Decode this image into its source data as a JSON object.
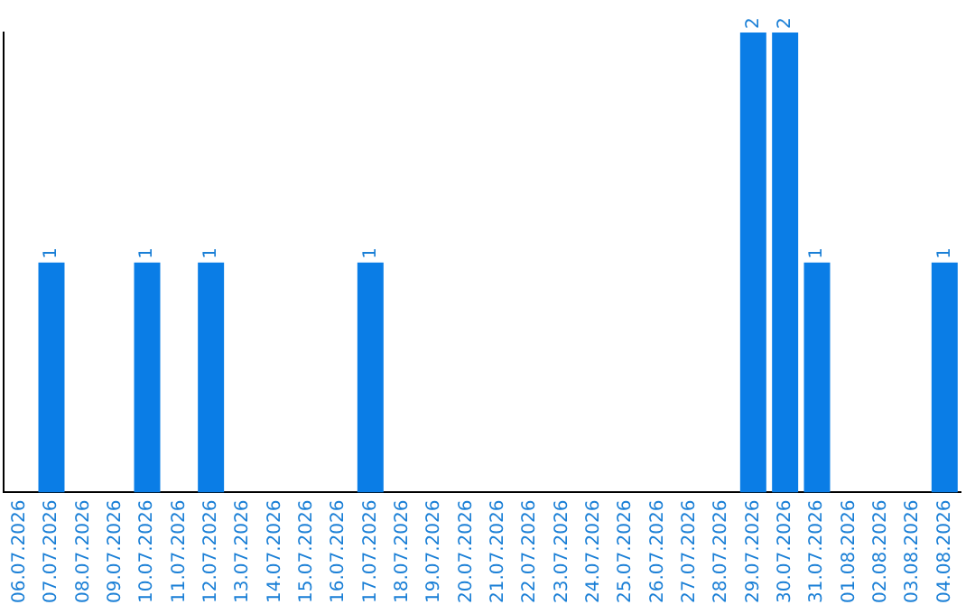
{
  "chart_data": {
    "type": "bar",
    "categories": [
      "06.07.2026",
      "07.07.2026",
      "08.07.2026",
      "09.07.2026",
      "10.07.2026",
      "11.07.2026",
      "12.07.2026",
      "13.07.2026",
      "14.07.2026",
      "15.07.2026",
      "16.07.2026",
      "17.07.2026",
      "18.07.2026",
      "19.07.2026",
      "20.07.2026",
      "21.07.2026",
      "22.07.2026",
      "23.07.2026",
      "24.07.2026",
      "25.07.2026",
      "26.07.2026",
      "27.07.2026",
      "28.07.2026",
      "29.07.2026",
      "30.07.2026",
      "31.07.2026",
      "01.08.2026",
      "02.08.2026",
      "03.08.2026",
      "04.08.2026"
    ],
    "values": [
      0,
      1,
      0,
      0,
      1,
      0,
      1,
      0,
      0,
      0,
      0,
      1,
      0,
      0,
      0,
      0,
      0,
      0,
      0,
      0,
      0,
      0,
      0,
      2,
      2,
      1,
      0,
      0,
      0,
      1
    ],
    "color": "#0a7de6",
    "value_labels": [
      null,
      "1",
      null,
      null,
      "1",
      null,
      "1",
      null,
      null,
      null,
      null,
      "1",
      null,
      null,
      null,
      null,
      null,
      null,
      null,
      null,
      null,
      null,
      null,
      "2",
      "2",
      "1",
      null,
      null,
      null,
      "1"
    ],
    "grid": false,
    "legend": false,
    "tick_labels": "x"
  }
}
